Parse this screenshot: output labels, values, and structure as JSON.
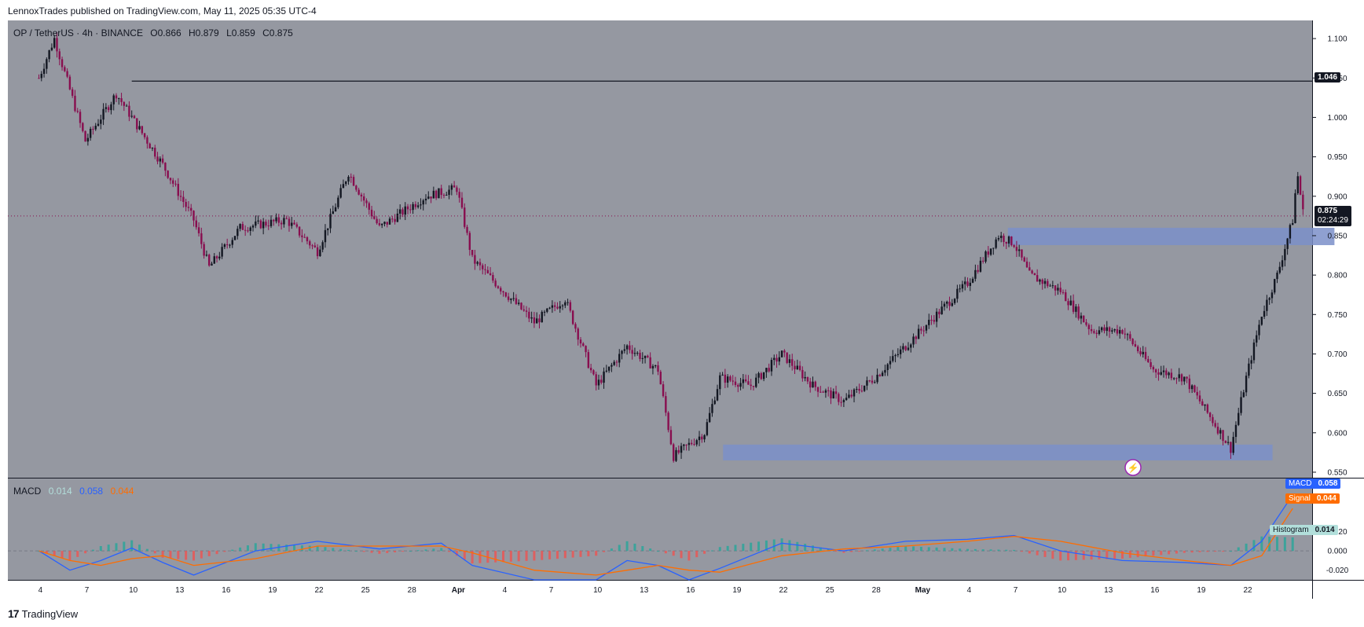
{
  "header": {
    "caption": "LennoxTrades published on TradingView.com, May 11, 2025 05:35 UTC-4"
  },
  "symbol_bar": {
    "symbol": "OP / TetherUS · 4h · BINANCE",
    "open": "O0.866",
    "high": "H0.879",
    "low": "L0.859",
    "close": "C0.875"
  },
  "macd_bar": {
    "label": "MACD",
    "histogram": "0.014",
    "macd": "0.058",
    "signal": "0.044"
  },
  "price_tags": {
    "resistance": "1.046",
    "last_price": "0.875",
    "countdown": "02:24:29"
  },
  "macd_tags": {
    "macd_name": "MACD",
    "macd_value": "0.058",
    "signal_name": "Signal",
    "signal_value": "0.044",
    "hist_name": "Histogram",
    "hist_value": "0.014"
  },
  "footer": {
    "brand": "TradingView"
  },
  "colors": {
    "background": "#9598a1",
    "bull": "#131722",
    "bear": "#880e4f",
    "zone": "#7b8fc9",
    "macd": "#2962ff",
    "signal": "#ff6d00",
    "hist_up": "#26a69a",
    "hist_down": "#ef5350"
  },
  "chart_data": [
    {
      "type": "candlestick",
      "title": "OP / TetherUS · 4h · BINANCE",
      "price_axis_ticks": [
        "1.100",
        "1.050",
        "1.000",
        "0.950",
        "0.900",
        "0.850",
        "0.800",
        "0.750",
        "0.700",
        "0.650",
        "0.600",
        "0.550"
      ],
      "ylim": [
        0.543,
        1.123
      ],
      "time_axis_ticks": [
        "4",
        "7",
        "10",
        "13",
        "16",
        "19",
        "22",
        "25",
        "28",
        "Apr",
        "4",
        "7",
        "10",
        "13",
        "16",
        "19",
        "22",
        "25",
        "28",
        "May",
        "4",
        "7",
        "10",
        "13",
        "16",
        "19",
        "22"
      ],
      "price_path": [
        {
          "day": 0,
          "price": 1.05
        },
        {
          "day": 1,
          "price": 1.1
        },
        {
          "day": 3,
          "price": 0.97
        },
        {
          "day": 5,
          "price": 1.03
        },
        {
          "day": 8,
          "price": 0.94
        },
        {
          "day": 10,
          "price": 0.87
        },
        {
          "day": 11,
          "price": 0.81
        },
        {
          "day": 13,
          "price": 0.86
        },
        {
          "day": 16,
          "price": 0.87
        },
        {
          "day": 18,
          "price": 0.83
        },
        {
          "day": 20,
          "price": 0.93
        },
        {
          "day": 22,
          "price": 0.86
        },
        {
          "day": 25,
          "price": 0.9
        },
        {
          "day": 27,
          "price": 0.91
        },
        {
          "day": 28,
          "price": 0.82
        },
        {
          "day": 30,
          "price": 0.78
        },
        {
          "day": 32,
          "price": 0.74
        },
        {
          "day": 34,
          "price": 0.77
        },
        {
          "day": 36,
          "price": 0.66
        },
        {
          "day": 38,
          "price": 0.71
        },
        {
          "day": 40,
          "price": 0.68
        },
        {
          "day": 41,
          "price": 0.57
        },
        {
          "day": 43,
          "price": 0.6
        },
        {
          "day": 44,
          "price": 0.67
        },
        {
          "day": 46,
          "price": 0.66
        },
        {
          "day": 48,
          "price": 0.7
        },
        {
          "day": 50,
          "price": 0.66
        },
        {
          "day": 52,
          "price": 0.64
        },
        {
          "day": 54,
          "price": 0.67
        },
        {
          "day": 56,
          "price": 0.71
        },
        {
          "day": 58,
          "price": 0.75
        },
        {
          "day": 60,
          "price": 0.79
        },
        {
          "day": 62,
          "price": 0.85
        },
        {
          "day": 63,
          "price": 0.84
        },
        {
          "day": 64,
          "price": 0.8
        },
        {
          "day": 66,
          "price": 0.78
        },
        {
          "day": 68,
          "price": 0.73
        },
        {
          "day": 70,
          "price": 0.73
        },
        {
          "day": 72,
          "price": 0.68
        },
        {
          "day": 74,
          "price": 0.67
        },
        {
          "day": 76,
          "price": 0.61
        },
        {
          "day": 77,
          "price": 0.58
        },
        {
          "day": 78,
          "price": 0.67
        },
        {
          "day": 79,
          "price": 0.75
        },
        {
          "day": 80,
          "price": 0.8
        },
        {
          "day": 81,
          "price": 0.87
        },
        {
          "day": 81.3,
          "price": 0.93
        },
        {
          "day": 81.7,
          "price": 0.875
        }
      ],
      "horizontal_line": {
        "price": 1.046,
        "start_day": 6
      },
      "zones": [
        {
          "from_day": 62.6,
          "to_day": 83.7,
          "low": 0.838,
          "high": 0.86
        },
        {
          "from_day": 44.2,
          "to_day": 79.7,
          "low": 0.565,
          "high": 0.585
        }
      ],
      "last_price": 0.875
    },
    {
      "type": "line",
      "title": "MACD",
      "ylim": [
        -0.03,
        0.075
      ],
      "axis_ticks": [
        "0.020",
        "0.000",
        "-0.020"
      ],
      "series": [
        {
          "name": "MACD",
          "points": [
            [
              0,
              0.0
            ],
            [
              2,
              -0.02
            ],
            [
              4,
              -0.01
            ],
            [
              6,
              0.003
            ],
            [
              8,
              -0.012
            ],
            [
              10,
              -0.025
            ],
            [
              14,
              0.0
            ],
            [
              18,
              0.01
            ],
            [
              22,
              0.002
            ],
            [
              26,
              0.008
            ],
            [
              28,
              -0.015
            ],
            [
              32,
              -0.03
            ],
            [
              36,
              -0.03
            ],
            [
              38,
              -0.01
            ],
            [
              40,
              -0.015
            ],
            [
              42,
              -0.03
            ],
            [
              44,
              -0.018
            ],
            [
              48,
              0.008
            ],
            [
              52,
              0.0
            ],
            [
              56,
              0.01
            ],
            [
              60,
              0.012
            ],
            [
              63,
              0.016
            ],
            [
              66,
              0.0
            ],
            [
              70,
              -0.01
            ],
            [
              74,
              -0.012
            ],
            [
              77,
              -0.015
            ],
            [
              79,
              0.01
            ],
            [
              81,
              0.058
            ]
          ]
        },
        {
          "name": "Signal",
          "points": [
            [
              0,
              0.0
            ],
            [
              2,
              -0.01
            ],
            [
              4,
              -0.015
            ],
            [
              6,
              -0.008
            ],
            [
              8,
              -0.005
            ],
            [
              10,
              -0.015
            ],
            [
              14,
              -0.008
            ],
            [
              18,
              0.005
            ],
            [
              22,
              0.005
            ],
            [
              26,
              0.005
            ],
            [
              28,
              -0.002
            ],
            [
              32,
              -0.02
            ],
            [
              36,
              -0.025
            ],
            [
              38,
              -0.02
            ],
            [
              40,
              -0.015
            ],
            [
              42,
              -0.02
            ],
            [
              44,
              -0.022
            ],
            [
              48,
              -0.005
            ],
            [
              52,
              0.002
            ],
            [
              56,
              0.005
            ],
            [
              60,
              0.01
            ],
            [
              63,
              0.015
            ],
            [
              66,
              0.01
            ],
            [
              70,
              -0.002
            ],
            [
              74,
              -0.01
            ],
            [
              77,
              -0.015
            ],
            [
              79,
              -0.005
            ],
            [
              81,
              0.044
            ]
          ]
        }
      ],
      "histogram_last": 0.014
    }
  ]
}
